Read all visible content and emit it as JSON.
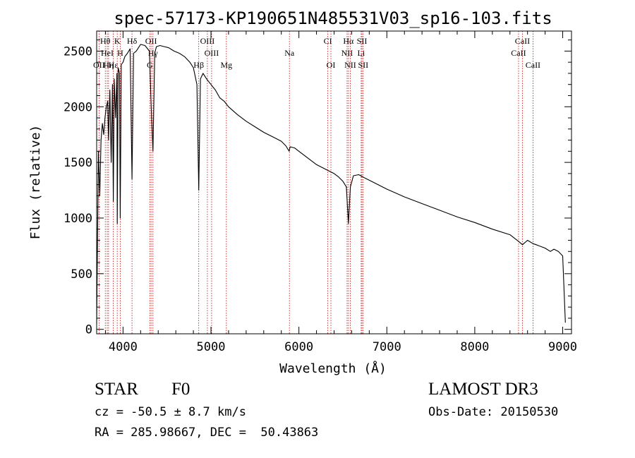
{
  "chart_data": {
    "type": "line",
    "title": "spec-57173-KP190651N485531V03_sp16-103.fits",
    "xlabel": "Wavelength (Å)",
    "ylabel": "Flux (relative)",
    "xlim": [
      3700,
      9100
    ],
    "ylim": [
      -40,
      2680
    ],
    "x_ticks": [
      4000,
      5000,
      6000,
      7000,
      8000,
      9000
    ],
    "y_ticks": [
      0,
      500,
      1000,
      1500,
      2000,
      2500
    ],
    "grid": false,
    "series": [
      {
        "name": "spectrum",
        "x": [
          3700,
          3720,
          3735,
          3750,
          3765,
          3780,
          3795,
          3810,
          3825,
          3835,
          3850,
          3865,
          3880,
          3889,
          3900,
          3915,
          3930,
          3934,
          3945,
          3960,
          3968,
          3980,
          4000,
          4020,
          4050,
          4080,
          4102,
          4120,
          4150,
          4200,
          4250,
          4300,
          4320,
          4340,
          4360,
          4380,
          4420,
          4470,
          4520,
          4580,
          4640,
          4700,
          4760,
          4800,
          4840,
          4861,
          4880,
          4910,
          4950,
          5000,
          5050,
          5100,
          5150,
          5200,
          5300,
          5400,
          5500,
          5600,
          5700,
          5800,
          5850,
          5890,
          5900,
          5950,
          6000,
          6100,
          6200,
          6300,
          6400,
          6450,
          6500,
          6540,
          6563,
          6585,
          6620,
          6680,
          6750,
          6850,
          7000,
          7200,
          7400,
          7600,
          7800,
          8000,
          8200,
          8400,
          8498,
          8542,
          8600,
          8662,
          8700,
          8800,
          8860,
          8900,
          8950,
          9000,
          9030
        ],
        "y": [
          50,
          1600,
          1200,
          1700,
          1850,
          1750,
          1900,
          2000,
          2050,
          1700,
          2150,
          1500,
          2200,
          1150,
          2250,
          1900,
          2300,
          950,
          2350,
          2300,
          1000,
          2380,
          2400,
          2450,
          2480,
          2520,
          1350,
          2480,
          2500,
          2560,
          2550,
          2500,
          2000,
          1600,
          2480,
          2540,
          2550,
          2540,
          2530,
          2500,
          2480,
          2450,
          2400,
          2350,
          2200,
          1250,
          2250,
          2300,
          2250,
          2200,
          2150,
          2080,
          2050,
          2000,
          1930,
          1870,
          1820,
          1770,
          1730,
          1690,
          1650,
          1600,
          1640,
          1630,
          1600,
          1540,
          1480,
          1440,
          1400,
          1370,
          1330,
          1280,
          950,
          1280,
          1380,
          1390,
          1360,
          1320,
          1260,
          1190,
          1130,
          1070,
          1010,
          960,
          900,
          850,
          790,
          760,
          800,
          770,
          760,
          730,
          700,
          720,
          700,
          660,
          60
        ]
      }
    ],
    "lines": [
      {
        "label": "Hθ",
        "x": 3798,
        "row": 1
      },
      {
        "label": "K",
        "x": 3934,
        "row": 1
      },
      {
        "label": "Hδ",
        "x": 4102,
        "row": 1
      },
      {
        "label": "OII",
        "x": 4319,
        "row": 1
      },
      {
        "label": "OIII",
        "x": 4959,
        "row": 1
      },
      {
        "label": "CI",
        "x": 6329,
        "row": 1
      },
      {
        "label": "Hα",
        "x": 6563,
        "row": 1
      },
      {
        "label": "SII",
        "x": 6717,
        "row": 1
      },
      {
        "label": "CaII",
        "x": 8542,
        "row": 1
      },
      {
        "label": "HeI",
        "x": 3820,
        "row": 2
      },
      {
        "label": "H",
        "x": 3968,
        "row": 2
      },
      {
        "label": "Hγ",
        "x": 4340,
        "row": 2
      },
      {
        "label": "OIII",
        "x": 5007,
        "row": 2
      },
      {
        "label": "Na",
        "x": 5892,
        "row": 2
      },
      {
        "label": "NII",
        "x": 6548,
        "row": 2
      },
      {
        "label": "Li",
        "x": 6708,
        "row": 2
      },
      {
        "label": "CaII",
        "x": 8498,
        "row": 2
      },
      {
        "label": "OII",
        "x": 3727,
        "row": 3
      },
      {
        "label": "Hη",
        "x": 3835,
        "row": 3
      },
      {
        "label": "Hε",
        "x": 3889,
        "row": 3
      },
      {
        "label": "G",
        "x": 4304,
        "row": 3
      },
      {
        "label": "Hβ",
        "x": 4861,
        "row": 3
      },
      {
        "label": "Mg",
        "x": 5175,
        "row": 3
      },
      {
        "label": "OI",
        "x": 6364,
        "row": 3
      },
      {
        "label": "NII",
        "x": 6584,
        "row": 3
      },
      {
        "label": "SII",
        "x": 6731,
        "row": 3
      },
      {
        "label": "CaII",
        "x": 8662,
        "row": 3
      }
    ]
  },
  "info": {
    "object_class": "STAR",
    "subclass": "F0",
    "survey": "LAMOST DR3",
    "redshift": "cz = -50.5 ± 8.7 km/s",
    "obs_date": "Obs-Date: 20150530",
    "coords": "RA = 285.98667, DEC =  50.43863"
  },
  "colors": {
    "spectrum": "#000000",
    "line_markers": "#cc0000",
    "axes": "#000000"
  }
}
